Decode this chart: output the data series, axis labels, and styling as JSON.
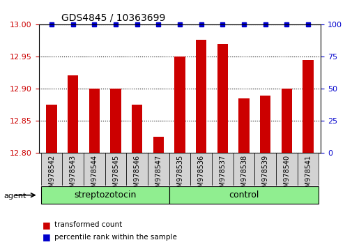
{
  "title": "GDS4845 / 10363699",
  "samples": [
    "GSM978542",
    "GSM978543",
    "GSM978544",
    "GSM978545",
    "GSM978546",
    "GSM978547",
    "GSM978535",
    "GSM978536",
    "GSM978537",
    "GSM978538",
    "GSM978539",
    "GSM978540",
    "GSM978541"
  ],
  "bar_values": [
    12.875,
    12.921,
    12.9,
    12.9,
    12.875,
    12.825,
    12.95,
    12.977,
    12.97,
    12.885,
    12.89,
    12.9,
    12.945
  ],
  "percentile_values": [
    100,
    100,
    100,
    100,
    100,
    100,
    100,
    100,
    100,
    100,
    100,
    100,
    100
  ],
  "bar_color": "#cc0000",
  "percentile_color": "#0000cc",
  "ylim_left": [
    12.8,
    13.0
  ],
  "ylim_right": [
    0,
    100
  ],
  "yticks_left": [
    12.8,
    12.85,
    12.9,
    12.95,
    13.0
  ],
  "yticks_right": [
    0,
    25,
    50,
    75,
    100
  ],
  "groups": [
    {
      "label": "streptozotocin",
      "start": 0,
      "end": 6,
      "color": "#90ee90"
    },
    {
      "label": "control",
      "start": 6,
      "end": 13,
      "color": "#90ee90"
    }
  ],
  "agent_label": "agent",
  "legend_items": [
    {
      "label": "transformed count",
      "color": "#cc0000"
    },
    {
      "label": "percentile rank within the sample",
      "color": "#0000cc"
    }
  ],
  "grid_color": "#000000",
  "tick_area_color": "#d3d3d3"
}
